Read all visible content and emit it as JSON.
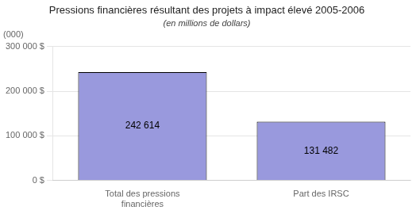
{
  "chart_data": {
    "type": "bar",
    "title": "Pressions financières résultant des projets à impact élevé 2005-2006",
    "subtitle": "(en millions de dollars)",
    "annotations": [
      "(000)"
    ],
    "categories": [
      "Total des pressions\nfinancières",
      "Part des IRSC"
    ],
    "values": [
      242614,
      131482
    ],
    "value_labels": [
      "242 614",
      "131 482"
    ],
    "data_labels": true,
    "color": "#9999dd",
    "ylim": [
      0,
      300000
    ],
    "yticks": [
      {
        "value": 0,
        "label": "0 $"
      },
      {
        "value": 100000,
        "label": "100 000 $"
      },
      {
        "value": 200000,
        "label": "200 000 $"
      },
      {
        "value": 300000,
        "label": "300 000 $"
      }
    ],
    "grid": true
  }
}
